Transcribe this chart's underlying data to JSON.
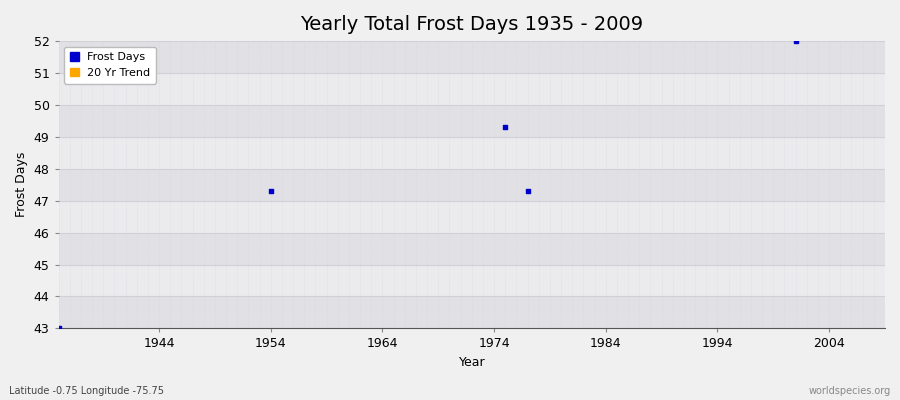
{
  "title": "Yearly Total Frost Days 1935 - 2009",
  "xlabel": "Year",
  "ylabel": "Frost Days",
  "subtitle_left": "Latitude -0.75 Longitude -75.75",
  "subtitle_right": "worldspecies.org",
  "xlim": [
    1935,
    2009
  ],
  "ylim": [
    43,
    52
  ],
  "yticks": [
    43,
    44,
    45,
    46,
    47,
    48,
    49,
    50,
    51,
    52
  ],
  "xticks": [
    1944,
    1954,
    1964,
    1974,
    1984,
    1994,
    2004
  ],
  "frost_days_x": [
    1935,
    1954,
    1975,
    1977,
    2001
  ],
  "frost_days_y": [
    43,
    47.3,
    49.3,
    47.3,
    52
  ],
  "dot_color": "#0000cc",
  "dot_size": 5,
  "bg_band_light": "#ebebee",
  "bg_band_dark": "#e0e0e5",
  "grid_major_h_color": "#d0d0d8",
  "grid_minor_v_color": "#d0d0d8",
  "legend_frost_color": "#0000cc",
  "legend_trend_color": "#ffa500",
  "title_fontsize": 14,
  "axis_label_fontsize": 9,
  "tick_fontsize": 9
}
